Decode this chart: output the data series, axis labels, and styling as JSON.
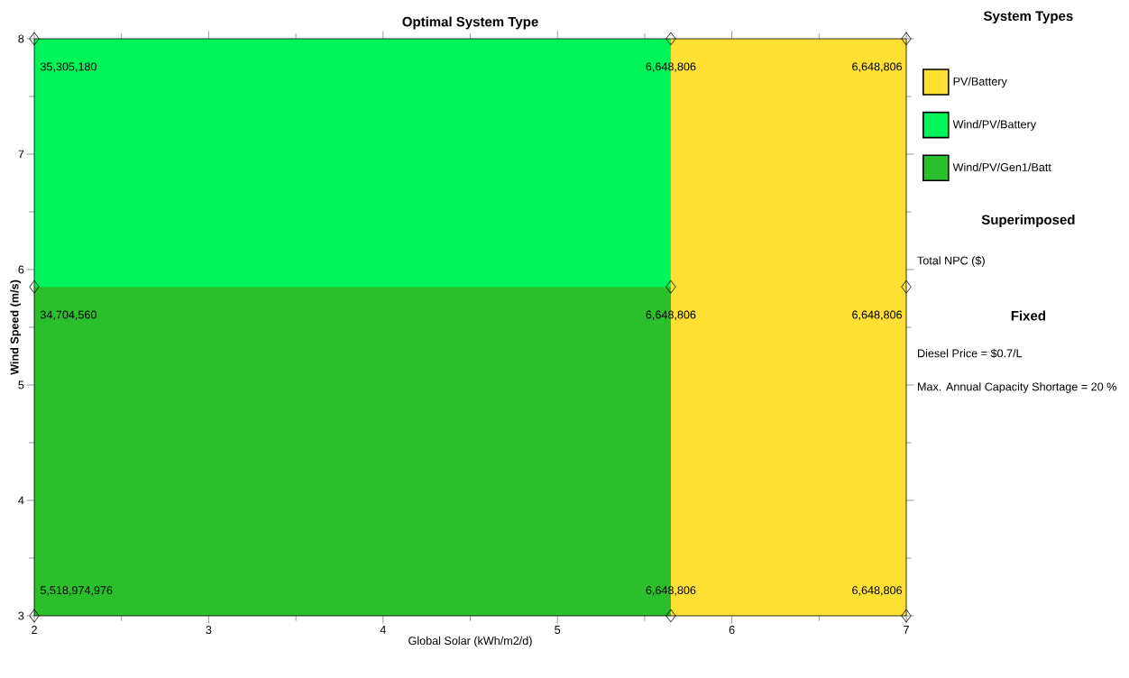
{
  "chart_data": {
    "type": "area",
    "title": "Optimal System Type",
    "xlabel": "Global Solar (kWh/m2/d)",
    "ylabel": "Wind Speed (m/s)",
    "legend_title": "System Types",
    "legend": "right",
    "xlim": [
      2,
      7
    ],
    "ylim": [
      3,
      8
    ],
    "xticks": [
      2,
      3,
      4,
      5,
      6,
      7
    ],
    "yticks": [
      3,
      4,
      5,
      6,
      7,
      8
    ],
    "series": [
      {
        "name": "PV/Battery",
        "color": "#ffe033",
        "x": [
          5.65,
          7
        ],
        "values": [
          8,
          8
        ]
      },
      {
        "name": "Wind/PV/Battery",
        "color": "#00f55a",
        "x": [
          2,
          5.65
        ],
        "values": [
          8,
          8
        ]
      },
      {
        "name": "Wind/PV/Gen1/Batt",
        "color": "#2cbf2c",
        "x": [
          2,
          5.65
        ],
        "values": [
          5.85,
          5.85
        ]
      },
      {
        "type": "scatter",
        "marker": "diamond",
        "color": "#000000",
        "x": [
          2,
          5.65,
          7,
          2,
          5.65,
          7,
          2,
          5.65,
          7
        ],
        "values": [
          8,
          8,
          8,
          5.85,
          5.85,
          5.85,
          3,
          3,
          3
        ]
      }
    ],
    "annotations": [
      "Superimposed",
      "Total NPC ($)",
      "Fixed",
      "Diesel Price = $0.7/L",
      "Max. Annual Capacity Shortage = 20 %",
      {
        "text": "35,305,180",
        "x": 2,
        "y": 8
      },
      {
        "text": "6,648,806",
        "x": 5.65,
        "y": 8
      },
      {
        "text": "6,648,806",
        "x": 7,
        "y": 8
      },
      {
        "text": "34,704,560",
        "x": 2,
        "y": 5.85
      },
      {
        "text": "6,648,806",
        "x": 5.65,
        "y": 5.85
      },
      {
        "text": "6,648,806",
        "x": 7,
        "y": 5.85
      },
      {
        "text": "5,518,974,976",
        "x": 2,
        "y": 3
      },
      {
        "text": "6,648,806",
        "x": 5.65,
        "y": 3
      },
      {
        "text": "6,648,806",
        "x": 7,
        "y": 3
      }
    ]
  }
}
